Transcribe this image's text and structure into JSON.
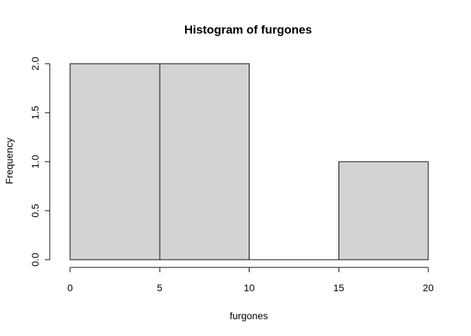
{
  "chart_data": {
    "type": "bar",
    "title": "Histogram of furgones",
    "xlabel": "furgones",
    "ylabel": "Frequency",
    "bins": [
      {
        "from": 0,
        "to": 5,
        "count": 2
      },
      {
        "from": 5,
        "to": 10,
        "count": 2
      },
      {
        "from": 10,
        "to": 15,
        "count": 0
      },
      {
        "from": 15,
        "to": 20,
        "count": 1
      }
    ],
    "xlim": [
      0,
      20
    ],
    "ylim": [
      0,
      2
    ],
    "x_ticks": [
      0,
      5,
      10,
      15,
      20
    ],
    "x_tick_labels": [
      "0",
      "5",
      "10",
      "15",
      "20"
    ],
    "y_ticks": [
      0,
      0.5,
      1,
      1.5,
      2
    ],
    "y_tick_labels": [
      "0.0",
      "0.5",
      "1.0",
      "1.5",
      "2.0"
    ],
    "grid": false,
    "legend": "none",
    "bar_fill": "#d3d3d3",
    "bar_stroke": "#000000"
  }
}
